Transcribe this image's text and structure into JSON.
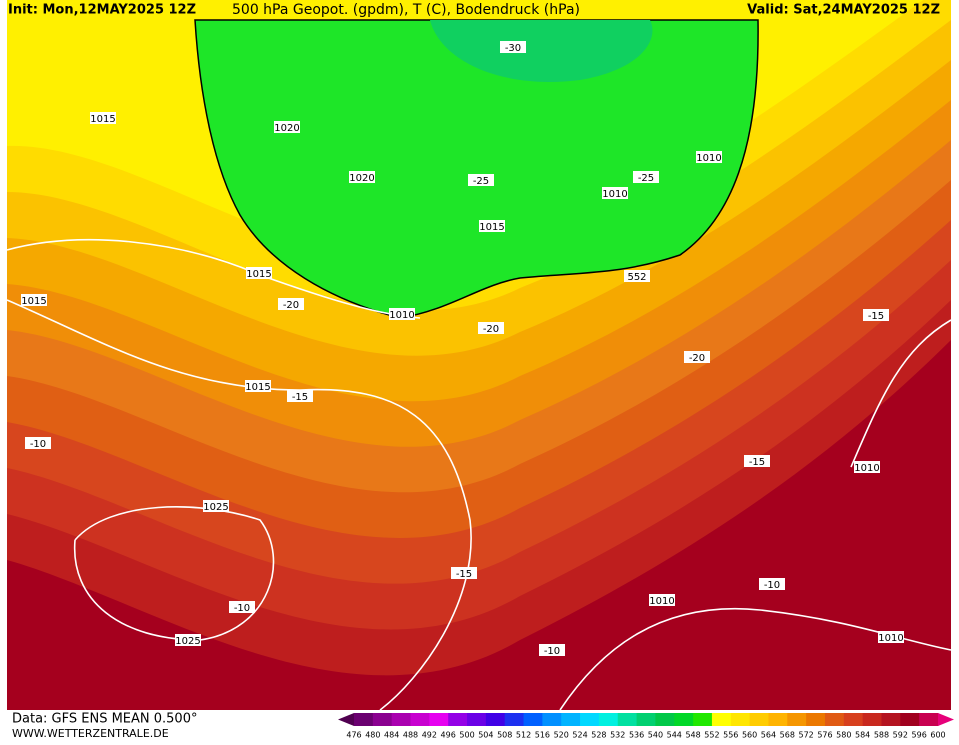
{
  "header": {
    "init": "Init: Mon,12MAY2025 12Z",
    "title": "500 hPa Geopot. (gpdm), T (C), Bodendruck (hPa)",
    "valid": "Valid: Sat,24MAY2025 12Z"
  },
  "map": {
    "labels": [
      "-30",
      "1015",
      "1020",
      "1010",
      "-25",
      "1020",
      "-25",
      "1010",
      "1015",
      "1015",
      "552",
      "1015",
      "-20",
      "1010",
      "-15",
      "-20",
      "-20",
      "1015",
      "-15",
      "-10",
      "-15",
      "1010",
      "1025",
      "-15",
      "-10",
      "1010",
      "-10",
      "1025",
      "1010",
      "-10"
    ]
  },
  "footer": {
    "data": "Data: GFS ENS MEAN 0.500°",
    "site": "WWW.WETTERZENTRALE.DE"
  },
  "legend": {
    "levels": [
      476,
      480,
      484,
      488,
      492,
      496,
      500,
      504,
      508,
      512,
      516,
      520,
      524,
      528,
      532,
      536,
      540,
      544,
      548,
      552,
      556,
      560,
      564,
      568,
      572,
      576,
      580,
      584,
      588,
      592,
      596,
      600
    ],
    "colors": [
      "#500050",
      "#6a0070",
      "#8a0090",
      "#aa00b0",
      "#c800d0",
      "#e600f0",
      "#9400e6",
      "#6a00e6",
      "#4000e6",
      "#1c30f0",
      "#0060ff",
      "#0090ff",
      "#00b4ff",
      "#00d8ff",
      "#00f0e0",
      "#00e0a0",
      "#00d070",
      "#00c848",
      "#00d828",
      "#20e800",
      "#ffff00",
      "#ffe600",
      "#ffcc00",
      "#ffb400",
      "#f59600",
      "#eb7800",
      "#e05a14",
      "#d7401e",
      "#c8281e",
      "#b41420",
      "#a0001e",
      "#c80050",
      "#e6007a"
    ]
  }
}
